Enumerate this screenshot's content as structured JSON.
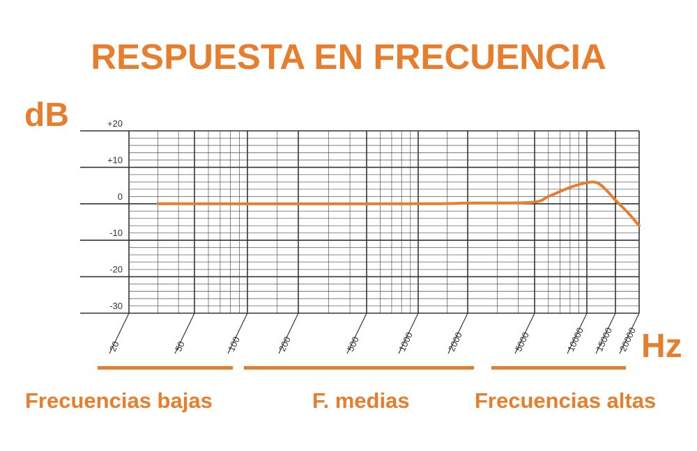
{
  "title": "RESPUESTA EN FRECUENCIA",
  "accent_color": "#E67E2E",
  "grid_color": "#333333",
  "bands": [
    {
      "label": "Frecuencias bajas"
    },
    {
      "label": "F. medias"
    },
    {
      "label": "Frecuencias altas"
    }
  ],
  "chart_data": {
    "type": "line",
    "title": "RESPUESTA EN FRECUENCIA",
    "xlabel": "Hz",
    "ylabel": "dB",
    "xscale": "log",
    "ylim": [
      -30,
      20
    ],
    "xlim": [
      20,
      20000
    ],
    "grid": true,
    "x_ticks": [
      "20",
      "50",
      "100",
      "200",
      "500",
      "1000",
      "2000",
      "5000",
      "10000",
      "15000",
      "20000"
    ],
    "y_ticks": [
      "+20",
      "+10",
      "0",
      "-10",
      "-20",
      "-30"
    ],
    "series": [
      {
        "x": [
          30,
          1000,
          2000,
          4800,
          6000,
          8000,
          10000,
          11500,
          13000,
          15000,
          17500,
          20000
        ],
        "y": [
          0,
          0,
          0.2,
          0.4,
          2,
          4.5,
          5.8,
          5.8,
          4,
          1,
          -2.5,
          -6
        ]
      }
    ]
  }
}
